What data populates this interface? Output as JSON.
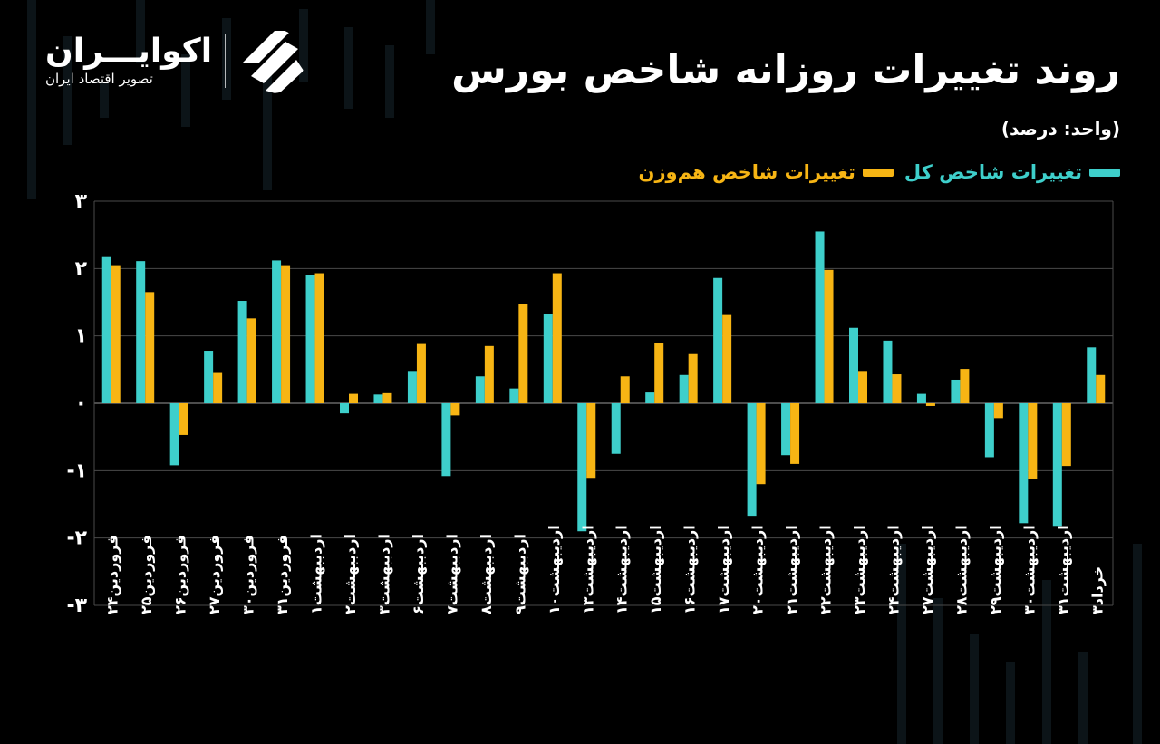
{
  "header": {
    "title": "روند تغییرات روزانه شاخص بورس",
    "unit": "(واحد: درصد)"
  },
  "brand": {
    "name": "اکوایـــران",
    "tagline": "تصویر اقتصاد ایران"
  },
  "legend": {
    "total_label": "تغییرات شاخص کل",
    "equal_label": "تغییرات شاخص هم‌وزن"
  },
  "colors": {
    "total": "#3ECFCB",
    "equal": "#F7B514",
    "grid": "#4a4a4a",
    "axis_text": "#ffffff"
  },
  "chart_data": {
    "type": "bar",
    "title": "روند تغییرات روزانه شاخص بورس",
    "ylabel": "",
    "xlabel": "",
    "ylim": [
      -3,
      3
    ],
    "yticks": [
      3,
      2,
      1,
      0,
      -1,
      -2,
      -3
    ],
    "ytick_labels": [
      "۳",
      "۲",
      "۱",
      "۰",
      "-۱",
      "-۲",
      "-۳"
    ],
    "grid": true,
    "legend_position": "top-right",
    "categories": [
      "فروردین۲۴",
      "فروردین۲۵",
      "فروردین۲۶",
      "فروردین۲۷",
      "فروردین۳۰",
      "فروردین۳۱",
      "اردیبهشت۱",
      "اردیبهشت۲",
      "اردیبهشت۳",
      "اردیبهشت۶",
      "اردیبهشت۷",
      "اردیبهشت۸",
      "اردیبهشت۹",
      "اردیبهشت۱۰",
      "اردیبهشت۱۳",
      "اردیبهشت۱۴",
      "اردیبهشت۱۵",
      "اردیبهشت۱۶",
      "اردیبهشت۱۷",
      "اردیبهشت۲۰",
      "اردیبهشت۲۱",
      "اردیبهشت۲۲",
      "اردیبهشت۲۳",
      "اردیبهشت۲۴",
      "اردیبهشت۲۷",
      "اردیبهشت۲۸",
      "اردیبهشت۲۹",
      "اردیبهشت۳۰",
      "اردیبهشت۳۱",
      "خرداد۳"
    ],
    "series": [
      {
        "name": "تغییرات شاخص کل",
        "values": [
          2.17,
          2.11,
          -0.92,
          0.78,
          1.52,
          2.12,
          1.9,
          -0.15,
          0.13,
          0.48,
          -1.08,
          0.4,
          0.22,
          1.33,
          -1.9,
          -0.75,
          0.16,
          0.42,
          1.86,
          -1.67,
          -0.77,
          2.55,
          1.12,
          0.93,
          0.14,
          0.35,
          -0.8,
          -1.78,
          -1.82,
          0.83
        ]
      },
      {
        "name": "تغییرات شاخص هم‌وزن",
        "values": [
          2.05,
          1.65,
          -0.47,
          0.45,
          1.26,
          2.05,
          1.93,
          0.14,
          0.15,
          0.88,
          -0.18,
          0.85,
          1.47,
          1.93,
          -1.12,
          0.4,
          0.9,
          0.73,
          1.31,
          -1.2,
          -0.9,
          1.98,
          0.48,
          0.43,
          -0.04,
          0.51,
          -0.22,
          -1.13,
          -0.93,
          0.42
        ]
      }
    ]
  }
}
